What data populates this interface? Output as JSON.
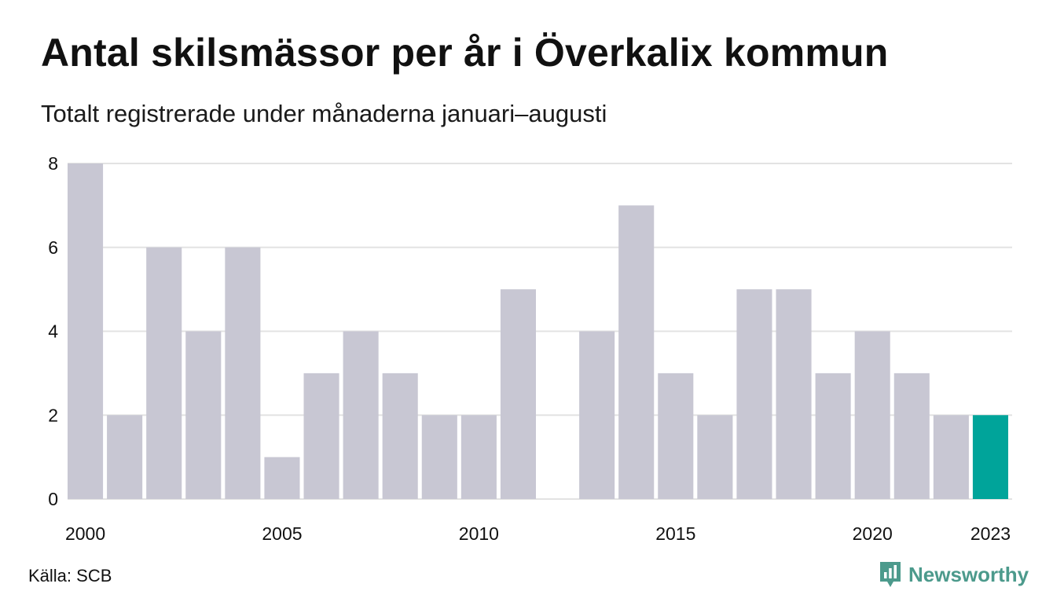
{
  "title": "Antal skilsmässor per år i Överkalix kommun",
  "subtitle": "Totalt registrerade under månaderna januari–augusti",
  "source": "Källa: SCB",
  "brand": {
    "name": "Newsworthy",
    "icon": "newsworthy-logo-icon"
  },
  "colors": {
    "bar": "#c8c7d3",
    "highlight": "#00a49a",
    "grid": "#e3e3e3",
    "brand": "#4c9a8c"
  },
  "chart_data": {
    "type": "bar",
    "categories": [
      "2000",
      "2001",
      "2002",
      "2003",
      "2004",
      "2005",
      "2006",
      "2007",
      "2008",
      "2009",
      "2010",
      "2011",
      "2012",
      "2013",
      "2014",
      "2015",
      "2016",
      "2017",
      "2018",
      "2019",
      "2020",
      "2021",
      "2022",
      "2023"
    ],
    "values": [
      8,
      2,
      6,
      4,
      6,
      1,
      3,
      4,
      3,
      2,
      2,
      5,
      0,
      4,
      7,
      3,
      2,
      5,
      5,
      3,
      4,
      3,
      2,
      2
    ],
    "highlight_category": "2023",
    "yticks": [
      0,
      2,
      4,
      6,
      8
    ],
    "xtick_labels": [
      "2000",
      "2005",
      "2010",
      "2015",
      "2020",
      "2023"
    ],
    "ylim": [
      0,
      8
    ],
    "xlabel": "",
    "ylabel": "",
    "grid": true,
    "legend": "none"
  }
}
